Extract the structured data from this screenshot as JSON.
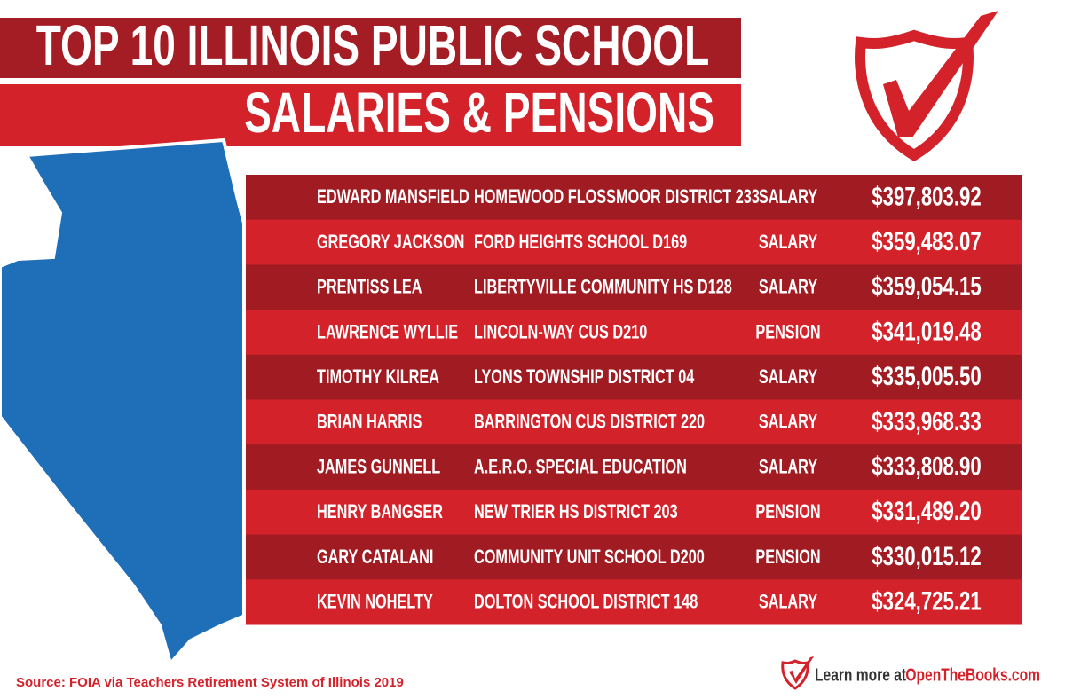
{
  "header": {
    "title_line1": "TOP 10 ILLINOIS PUBLIC SCHOOL",
    "title_line2": "SALARIES & PENSIONS"
  },
  "table": {
    "rows": [
      [
        "EDWARD MANSFIELD",
        "HOMEWOOD FLOSSMOOR DISTRICT 233",
        "SALARY",
        "$397,803.92"
      ],
      [
        "GREGORY JACKSON",
        "FORD HEIGHTS SCHOOL D169",
        "SALARY",
        "$359,483.07"
      ],
      [
        "PRENTISS LEA",
        "LIBERTYVILLE COMMUNITY HS D128",
        "SALARY",
        "$359,054.15"
      ],
      [
        "LAWRENCE WYLLIE",
        "LINCOLN-WAY CUS D210",
        "PENSION",
        "$341,019.48"
      ],
      [
        "TIMOTHY KILREA",
        "LYONS TOWNSHIP DISTRICT 04",
        "SALARY",
        "$335,005.50"
      ],
      [
        "BRIAN HARRIS",
        "BARRINGTON CUS DISTRICT 220",
        "SALARY",
        "$333,968.33"
      ],
      [
        "JAMES GUNNELL",
        "A.E.R.O. SPECIAL EDUCATION",
        "SALARY",
        "$333,808.90"
      ],
      [
        "HENRY BANGSER",
        "NEW TRIER HS DISTRICT 203",
        "PENSION",
        "$331,489.20"
      ],
      [
        "GARY CATALANI",
        "COMMUNITY UNIT SCHOOL D200",
        "PENSION",
        "$330,015.12"
      ],
      [
        "KEVIN NOHELTY",
        "DOLTON SCHOOL DISTRICT 148",
        "SALARY",
        "$324,725.21"
      ]
    ]
  },
  "footer": {
    "source": "Source: FOIA via Teachers Retirement System of Illinois 2019",
    "learn_more": "Learn more at",
    "site": "OpenTheBooks.com"
  }
}
